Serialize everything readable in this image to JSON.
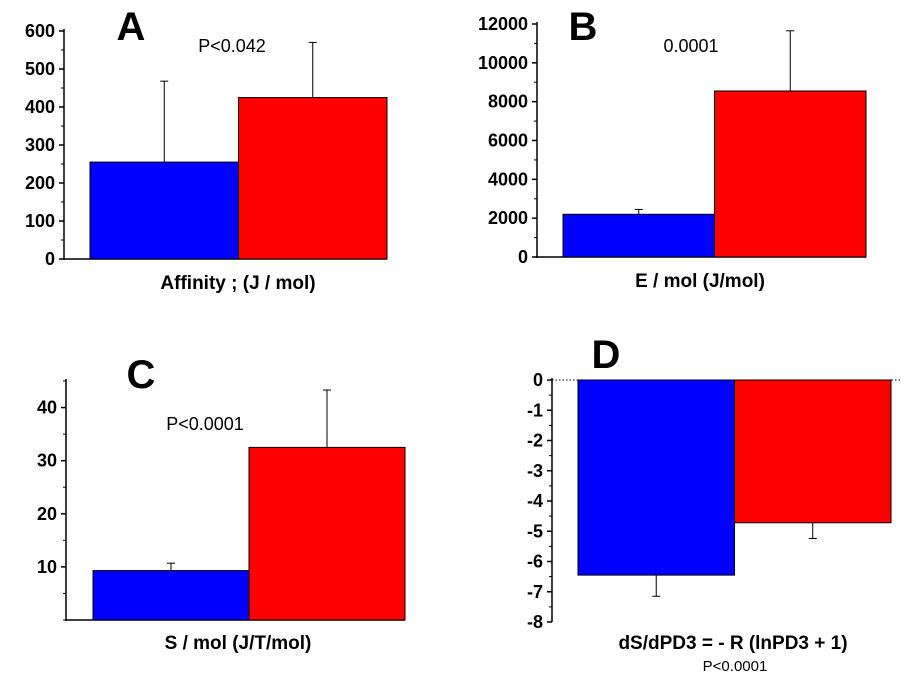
{
  "chart_data": [
    {
      "type": "bar",
      "panel_label": "A",
      "xlabel": "Affinity ; (J / mol)",
      "annotation": "P<0.042",
      "ylim": [
        0,
        600
      ],
      "yticks": [
        "0",
        "100",
        "200",
        "300",
        "400",
        "500",
        "600"
      ],
      "bars": [
        {
          "value": 255,
          "error": 213,
          "color": "#0000ff"
        },
        {
          "value": 425,
          "error": 145,
          "color": "#ff0000"
        }
      ]
    },
    {
      "type": "bar",
      "panel_label": "B",
      "xlabel": "E / mol (J/mol)",
      "annotation": "0.0001",
      "ylim": [
        0,
        12000
      ],
      "yticks": [
        "0",
        "2000",
        "4000",
        "6000",
        "8000",
        "10000",
        "12000"
      ],
      "bars": [
        {
          "value": 2200,
          "error": 250,
          "color": "#0000ff"
        },
        {
          "value": 8550,
          "error": 3100,
          "color": "#ff0000"
        }
      ]
    },
    {
      "type": "bar",
      "panel_label": "C",
      "xlabel": "S  / mol (J/T/mol)",
      "annotation": "P<0.0001",
      "ylim": [
        0,
        45
      ],
      "yticks": [
        "10",
        "20",
        "30",
        "40"
      ],
      "ytick_values": [
        10,
        20,
        30,
        40
      ],
      "bars": [
        {
          "value": 9.3,
          "error": 1.4,
          "color": "#0000ff"
        },
        {
          "value": 32.5,
          "error": 10.8,
          "color": "#ff0000"
        }
      ]
    },
    {
      "type": "bar",
      "panel_label": "D",
      "xlabel": "dS/dPD3 = -  R (lnPD3 + 1)",
      "annotation": "P<0.0001",
      "ylim": [
        -8,
        0
      ],
      "yticks": [
        "0",
        "-1",
        "-2",
        "-3",
        "-4",
        "-5",
        "-6",
        "-7",
        "-8"
      ],
      "bars": [
        {
          "value": -6.45,
          "error": 0.7,
          "color": "#0000ff"
        },
        {
          "value": -4.72,
          "error": 0.52,
          "color": "#ff0000"
        }
      ]
    }
  ]
}
